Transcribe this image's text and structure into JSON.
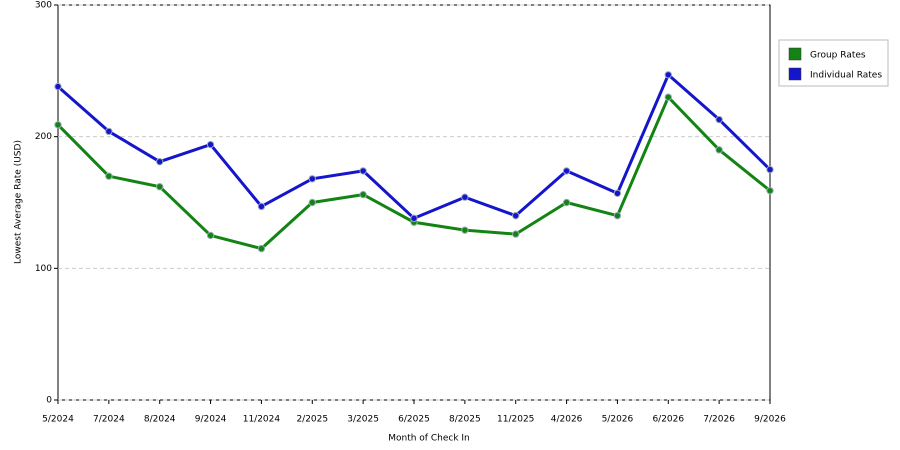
{
  "chart_data": {
    "type": "line",
    "x_label": "Month of Check In",
    "y_label": "Lowest Average Rate (USD)",
    "categories": [
      "5/2024",
      "7/2024",
      "8/2024",
      "9/2024",
      "11/2024",
      "2/2025",
      "3/2025",
      "6/2025",
      "8/2025",
      "11/2025",
      "4/2026",
      "5/2026",
      "6/2026",
      "7/2026",
      "9/2026"
    ],
    "series": [
      {
        "name": "Group Rates",
        "color": "#138413",
        "values": [
          209,
          170,
          162,
          125,
          115,
          150,
          156,
          135,
          129,
          126,
          150,
          140,
          230,
          190,
          159
        ]
      },
      {
        "name": "Individual Rates",
        "color": "#1515cc",
        "values": [
          238,
          204,
          181,
          194,
          147,
          168,
          174,
          138,
          154,
          140,
          174,
          157,
          247,
          213,
          175
        ]
      }
    ],
    "ylim": [
      0,
      300
    ],
    "yticks": [
      0,
      100,
      200,
      300
    ],
    "grid": true,
    "legend": "right"
  }
}
